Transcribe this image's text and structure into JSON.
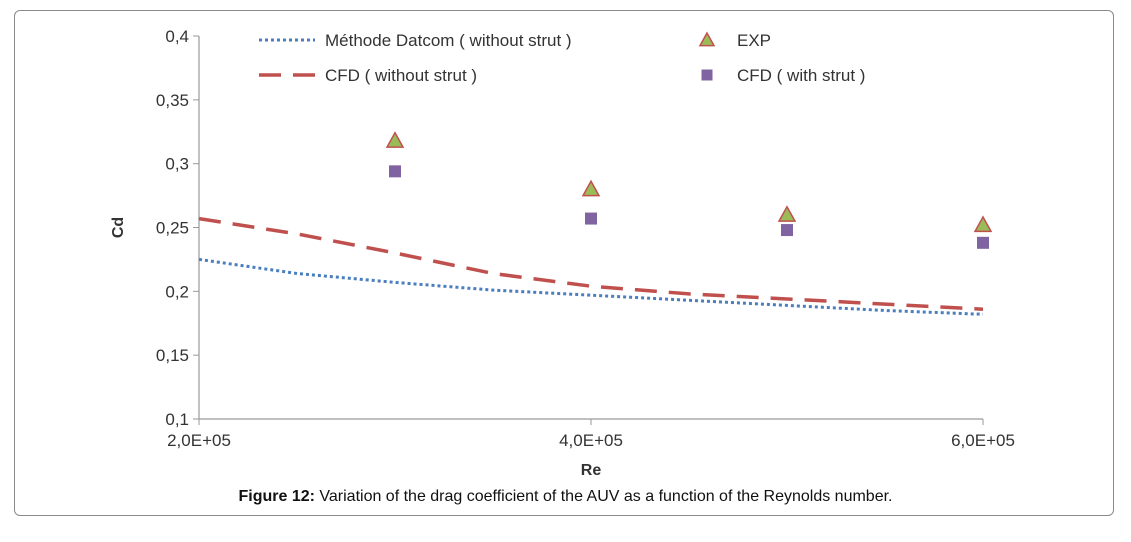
{
  "caption": {
    "label": "Figure 12:",
    "text": " Variation of the drag coefficient of the AUV as a function of the Reynolds number."
  },
  "chart_data": {
    "type": "line",
    "xlabel": "Re",
    "ylabel": "Cd",
    "xlim": [
      200000,
      600000
    ],
    "ylim": [
      0.1,
      0.4
    ],
    "x_ticks": [
      200000,
      400000,
      600000
    ],
    "x_tick_labels": [
      "2,0E+05",
      "4,0E+05",
      "6,0E+05"
    ],
    "y_ticks": [
      0.1,
      0.15,
      0.2,
      0.25,
      0.3,
      0.35,
      0.4
    ],
    "y_tick_labels": [
      "0,1",
      "0,15",
      "0,2",
      "0,25",
      "0,3",
      "0,35",
      "0,4"
    ],
    "grid": false,
    "legend_position": "top",
    "series": [
      {
        "name": "Méthode Datcom ( without strut )",
        "style": "dotted-line",
        "color": "#4a7ebf",
        "x": [
          200000,
          250000,
          300000,
          350000,
          400000,
          450000,
          500000,
          550000,
          600000
        ],
        "y": [
          0.225,
          0.214,
          0.207,
          0.201,
          0.197,
          0.193,
          0.189,
          0.185,
          0.182
        ]
      },
      {
        "name": "CFD ( without strut )",
        "style": "dashed-line",
        "color": "#c0504d",
        "x": [
          200000,
          250000,
          300000,
          350000,
          400000,
          450000,
          500000,
          550000,
          600000
        ],
        "y": [
          0.257,
          0.245,
          0.23,
          0.214,
          0.204,
          0.198,
          0.194,
          0.19,
          0.186
        ]
      },
      {
        "name": "EXP",
        "style": "triangle-marker",
        "color": "#9bbb59",
        "stroke": "#c0504d",
        "x": [
          300000,
          400000,
          500000,
          600000
        ],
        "y": [
          0.318,
          0.28,
          0.26,
          0.252
        ]
      },
      {
        "name": "CFD (  with strut )",
        "style": "square-marker",
        "color": "#8064a2",
        "x": [
          300000,
          400000,
          500000,
          600000
        ],
        "y": [
          0.294,
          0.257,
          0.248,
          0.238
        ]
      }
    ]
  }
}
